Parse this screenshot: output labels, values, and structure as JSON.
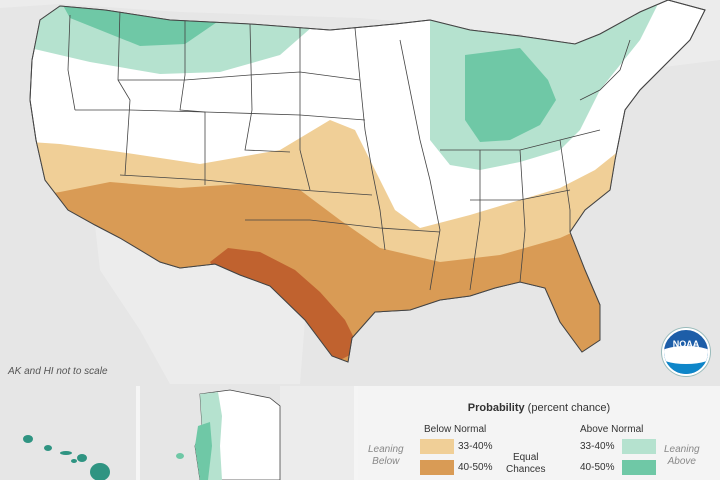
{
  "map": {
    "note": "AK and HI not to scale",
    "logo_text": "NOAA",
    "colors": {
      "land": "#ffffff",
      "background": "#e6e6e6",
      "lake": "#d9d9d9",
      "below_33_40": "#f0cf97",
      "below_40_50": "#d99b55",
      "below_50_60": "#c0622f",
      "above_33_40": "#b5e2cf",
      "above_40_50": "#6fc8a6",
      "above_hawaii": "#2f9482"
    }
  },
  "legend": {
    "title": "Probability",
    "title_sub": "(percent chance)",
    "below_header": "Below Normal",
    "above_header": "Above Normal",
    "leaning_below": [
      "Leaning",
      "Below"
    ],
    "leaning_above": [
      "Leaning",
      "Above"
    ],
    "equal_chances": [
      "Equal",
      "Chances"
    ],
    "ranges": [
      "33-40%",
      "40-50%"
    ]
  }
}
